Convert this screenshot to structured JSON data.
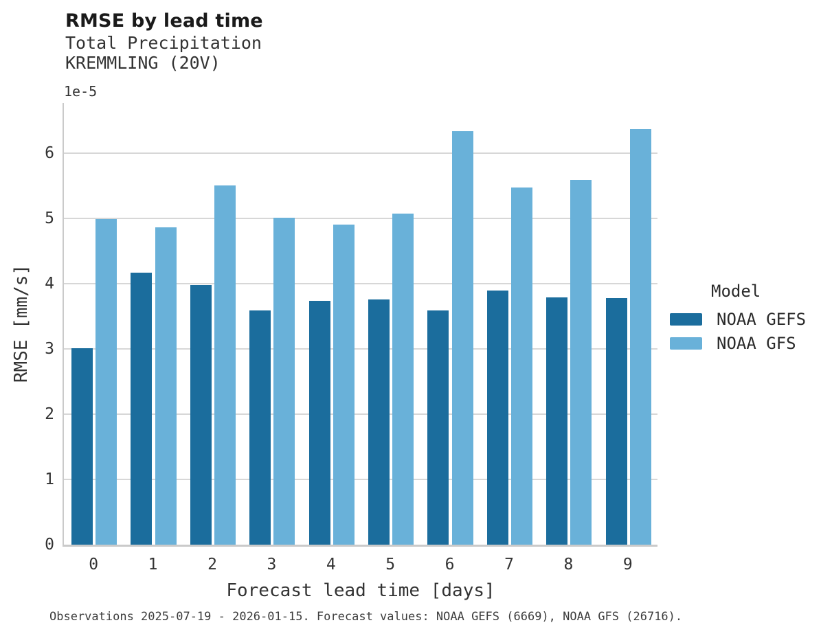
{
  "header": {
    "title": "RMSE by lead time",
    "subtitle_line1": "Total Precipitation",
    "subtitle_line2": "KREMMLING (20V)"
  },
  "footer": {
    "text": "Observations 2025-07-19 - 2026-01-15. Forecast values: NOAA GEFS (6669), NOAA GFS (26716)."
  },
  "chart_data": {
    "type": "bar",
    "title": "RMSE by lead time",
    "subtitle": [
      "Total Precipitation",
      "KREMMLING (20V)"
    ],
    "xlabel": "Forecast lead time [days]",
    "ylabel": "RMSE [mm/s]",
    "offset_label": "1e-5",
    "value_scale": "1e-5",
    "categories": [
      "0",
      "1",
      "2",
      "3",
      "4",
      "5",
      "6",
      "7",
      "8",
      "9"
    ],
    "series": [
      {
        "name": "NOAA GEFS",
        "color": "#1b6d9d",
        "values": [
          3.01,
          4.17,
          3.98,
          3.59,
          3.74,
          3.76,
          3.59,
          3.89,
          3.79,
          3.78
        ]
      },
      {
        "name": "NOAA GFS",
        "color": "#69b1d9",
        "values": [
          4.99,
          4.86,
          5.51,
          5.01,
          4.91,
          5.07,
          6.34,
          5.47,
          5.59,
          6.37
        ]
      }
    ],
    "ylim": [
      0,
      6.77
    ],
    "yticks": [
      0,
      1,
      2,
      3,
      4,
      5,
      6
    ],
    "grid": "horizontal",
    "legend": {
      "title": "Model",
      "position": "right"
    }
  }
}
